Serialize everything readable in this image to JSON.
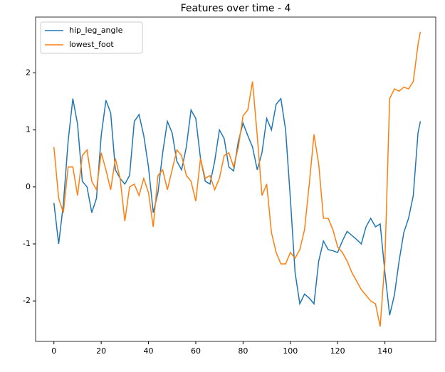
{
  "chart_data": {
    "type": "line",
    "title": "Features over time - 4",
    "x": [
      0,
      2,
      4,
      6,
      8,
      10,
      12,
      14,
      16,
      18,
      20,
      22,
      24,
      26,
      28,
      30,
      32,
      34,
      36,
      38,
      40,
      42,
      44,
      46,
      48,
      50,
      52,
      54,
      56,
      58,
      60,
      62,
      64,
      66,
      68,
      70,
      72,
      74,
      76,
      78,
      80,
      82,
      84,
      86,
      88,
      90,
      92,
      94,
      96,
      98,
      100,
      102,
      104,
      106,
      108,
      110,
      112,
      114,
      116,
      118,
      120,
      122,
      124,
      126,
      128,
      130,
      132,
      134,
      136,
      138,
      140,
      142,
      144,
      146,
      148,
      150,
      152,
      154,
      155
    ],
    "series": [
      {
        "name": "hip_leg_angle",
        "color": "#1f77b4",
        "values": [
          -0.28,
          -1.0,
          -0.3,
          0.8,
          1.55,
          1.1,
          0.1,
          0.0,
          -0.45,
          -0.2,
          0.9,
          1.52,
          1.3,
          0.3,
          0.15,
          0.05,
          0.2,
          1.15,
          1.27,
          0.9,
          0.35,
          -0.45,
          -0.1,
          0.6,
          1.15,
          0.95,
          0.45,
          0.3,
          0.7,
          1.35,
          1.2,
          0.5,
          0.1,
          0.05,
          0.45,
          1.0,
          0.85,
          0.35,
          0.28,
          0.8,
          1.12,
          0.9,
          0.7,
          0.3,
          0.6,
          1.2,
          1.0,
          1.45,
          1.55,
          1.0,
          -0.2,
          -1.5,
          -2.05,
          -1.88,
          -1.95,
          -2.05,
          -1.3,
          -0.95,
          -1.1,
          -1.12,
          -1.15,
          -0.95,
          -0.78,
          -0.85,
          -0.92,
          -1.0,
          -0.7,
          -0.55,
          -0.7,
          -0.65,
          -1.5,
          -2.25,
          -1.9,
          -1.3,
          -0.8,
          -0.55,
          -0.15,
          0.95,
          1.15
        ]
      },
      {
        "name": "lowest_foot",
        "color": "#ff7f0e",
        "values": [
          0.7,
          -0.2,
          -0.45,
          0.35,
          0.35,
          -0.15,
          0.55,
          0.65,
          0.1,
          -0.05,
          0.6,
          0.3,
          -0.05,
          0.5,
          0.15,
          -0.6,
          0.0,
          0.05,
          -0.15,
          0.15,
          -0.1,
          -0.7,
          0.2,
          0.3,
          -0.05,
          0.3,
          0.65,
          0.55,
          0.2,
          0.1,
          -0.25,
          0.5,
          0.15,
          0.2,
          -0.05,
          0.15,
          0.55,
          0.6,
          0.35,
          0.7,
          1.25,
          1.35,
          1.85,
          0.9,
          -0.15,
          0.05,
          -0.8,
          -1.15,
          -1.35,
          -1.35,
          -1.15,
          -1.25,
          -1.1,
          -0.75,
          0.05,
          0.92,
          0.4,
          -0.55,
          -0.55,
          -0.75,
          -1.05,
          -1.15,
          -1.3,
          -1.5,
          -1.65,
          -1.8,
          -1.9,
          -2.0,
          -2.05,
          -2.45,
          -1.3,
          1.55,
          1.72,
          1.68,
          1.75,
          1.72,
          1.85,
          2.5,
          2.72
        ]
      }
    ],
    "xlim": [
      -7.75,
      161.5
    ],
    "xticks": [
      0,
      20,
      40,
      60,
      80,
      100,
      120,
      140
    ],
    "ylim": [
      -2.71,
      2.98
    ],
    "yticks": [
      -2,
      -1,
      0,
      1,
      2
    ],
    "grid": false,
    "legend": "upper left"
  }
}
